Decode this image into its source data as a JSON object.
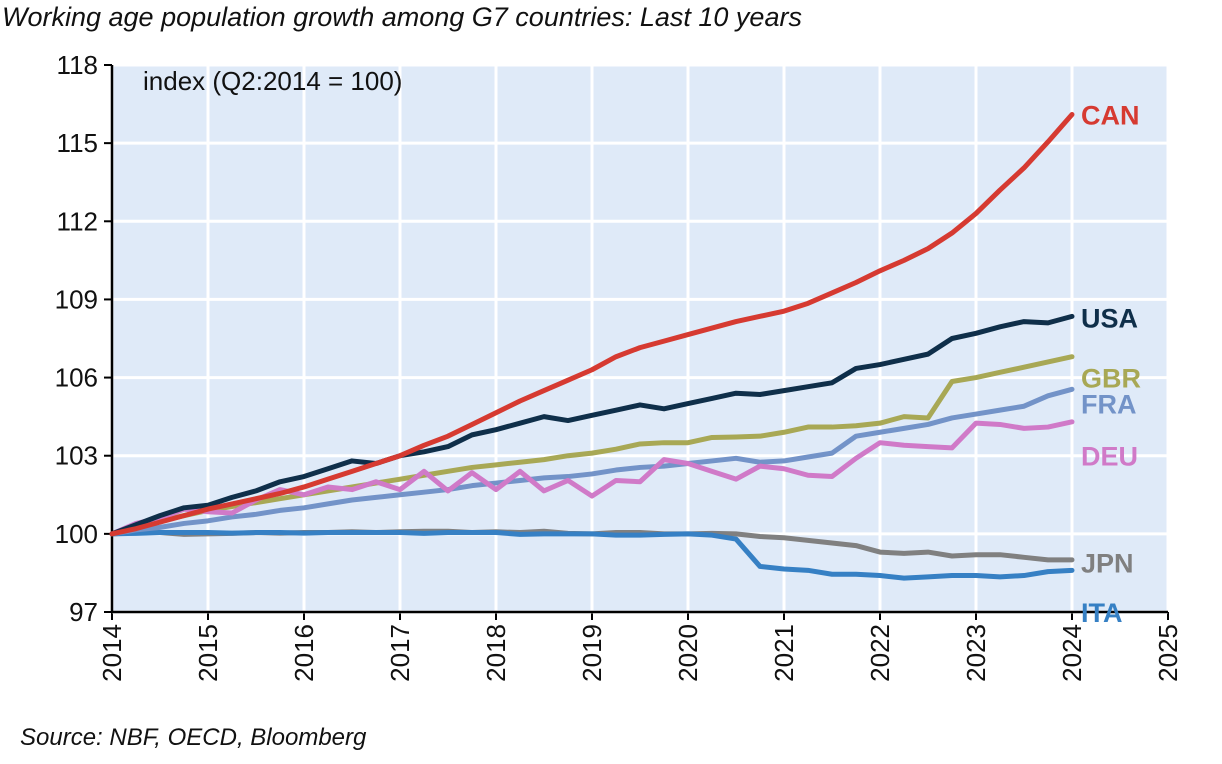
{
  "chart_data": {
    "type": "line",
    "title": "Working age population growth among G7 countries: Last 10 years",
    "annotation": "index (Q2:2014 = 100)",
    "source": "Source: NBF, OECD, Bloomberg",
    "xlim": [
      2014,
      2025
    ],
    "ylim": [
      97,
      118
    ],
    "x_ticks": [
      "2014",
      "2015",
      "2016",
      "2017",
      "2018",
      "2019",
      "2020",
      "2021",
      "2022",
      "2023",
      "2024",
      "2025"
    ],
    "y_ticks": [
      "97",
      "100",
      "103",
      "106",
      "109",
      "112",
      "115",
      "118"
    ],
    "grid": true,
    "background_color": "#dfeaf8",
    "x": [
      2014,
      2014.25,
      2014.5,
      2014.75,
      2015,
      2015.25,
      2015.5,
      2015.75,
      2016,
      2016.25,
      2016.5,
      2016.75,
      2017,
      2017.25,
      2017.5,
      2017.75,
      2018,
      2018.25,
      2018.5,
      2018.75,
      2019,
      2019.25,
      2019.5,
      2019.75,
      2020,
      2020.25,
      2020.5,
      2020.75,
      2021,
      2021.25,
      2021.5,
      2021.75,
      2022,
      2022.25,
      2022.5,
      2022.75,
      2023,
      2023.25,
      2023.5,
      2023.75,
      2024
    ],
    "series": [
      {
        "name": "CAN",
        "color": "#d63a31",
        "values": [
          100,
          100.2,
          100.45,
          100.7,
          100.95,
          101.15,
          101.35,
          101.55,
          101.8,
          102.1,
          102.4,
          102.7,
          103.0,
          103.4,
          103.75,
          104.2,
          104.65,
          105.1,
          105.5,
          105.9,
          106.3,
          106.8,
          107.15,
          107.4,
          107.65,
          107.9,
          108.15,
          108.35,
          108.55,
          108.85,
          109.25,
          109.65,
          110.1,
          110.5,
          110.95,
          111.55,
          112.3,
          113.2,
          114.05,
          115.05,
          116.1
        ]
      },
      {
        "name": "USA",
        "color": "#0f2f4a",
        "values": [
          100,
          100.35,
          100.7,
          101.0,
          101.1,
          101.4,
          101.65,
          102.0,
          102.2,
          102.5,
          102.8,
          102.7,
          103.0,
          103.15,
          103.35,
          103.8,
          104.0,
          104.25,
          104.5,
          104.35,
          104.55,
          104.75,
          104.95,
          104.8,
          105.0,
          105.2,
          105.4,
          105.35,
          105.5,
          105.65,
          105.8,
          106.35,
          106.5,
          106.7,
          106.9,
          107.5,
          107.7,
          107.95,
          108.15,
          108.1,
          108.35
        ]
      },
      {
        "name": "GBR",
        "color": "#a8a855",
        "values": [
          100,
          100.25,
          100.5,
          100.7,
          100.9,
          101.05,
          101.2,
          101.35,
          101.5,
          101.65,
          101.8,
          101.95,
          102.1,
          102.25,
          102.4,
          102.55,
          102.65,
          102.75,
          102.85,
          103.0,
          103.1,
          103.25,
          103.45,
          103.5,
          103.5,
          103.7,
          103.72,
          103.75,
          103.9,
          104.1,
          104.1,
          104.15,
          104.25,
          104.5,
          104.45,
          105.85,
          106.0,
          106.2,
          106.4,
          106.6,
          106.8
        ]
      },
      {
        "name": "FRA",
        "color": "#7393c8",
        "values": [
          100,
          100.15,
          100.25,
          100.4,
          100.5,
          100.65,
          100.75,
          100.9,
          101.0,
          101.15,
          101.3,
          101.4,
          101.5,
          101.6,
          101.7,
          101.85,
          101.95,
          102.05,
          102.15,
          102.2,
          102.3,
          102.45,
          102.55,
          102.6,
          102.7,
          102.8,
          102.9,
          102.75,
          102.8,
          102.95,
          103.1,
          103.75,
          103.9,
          104.05,
          104.2,
          104.45,
          104.6,
          104.75,
          104.9,
          105.3,
          105.55
        ]
      },
      {
        "name": "DEU",
        "color": "#d07ac8",
        "values": [
          100,
          100.4,
          100.6,
          100.95,
          100.85,
          100.8,
          101.3,
          101.7,
          101.5,
          101.8,
          101.7,
          102.0,
          101.7,
          102.4,
          101.65,
          102.35,
          101.7,
          102.4,
          101.65,
          102.05,
          101.45,
          102.05,
          102.0,
          102.85,
          102.7,
          102.4,
          102.1,
          102.6,
          102.5,
          102.25,
          102.2,
          102.9,
          103.5,
          103.4,
          103.35,
          103.3,
          104.25,
          104.2,
          104.05,
          104.1,
          104.3
        ]
      },
      {
        "name": "JPN",
        "color": "#808080",
        "values": [
          100,
          100.05,
          100.05,
          99.98,
          100.0,
          100.02,
          100.05,
          100.03,
          100.05,
          100.05,
          100.08,
          100.05,
          100.08,
          100.1,
          100.1,
          100.05,
          100.08,
          100.05,
          100.1,
          100.02,
          100.0,
          100.05,
          100.05,
          100.0,
          100.0,
          100.02,
          100.0,
          99.9,
          99.85,
          99.75,
          99.65,
          99.55,
          99.3,
          99.25,
          99.3,
          99.15,
          99.2,
          99.2,
          99.1,
          99.0,
          99.0
        ]
      },
      {
        "name": "ITA",
        "color": "#3680c4",
        "values": [
          100,
          100.02,
          100.05,
          100.05,
          100.05,
          100.03,
          100.05,
          100.05,
          100.03,
          100.05,
          100.05,
          100.05,
          100.05,
          100.02,
          100.05,
          100.05,
          100.05,
          99.98,
          100.0,
          100.0,
          100.0,
          99.95,
          99.95,
          99.98,
          100.0,
          99.95,
          99.8,
          98.75,
          98.65,
          98.6,
          98.45,
          98.45,
          98.4,
          98.3,
          98.35,
          98.4,
          98.4,
          98.35,
          98.4,
          98.55,
          98.6
        ]
      }
    ]
  }
}
